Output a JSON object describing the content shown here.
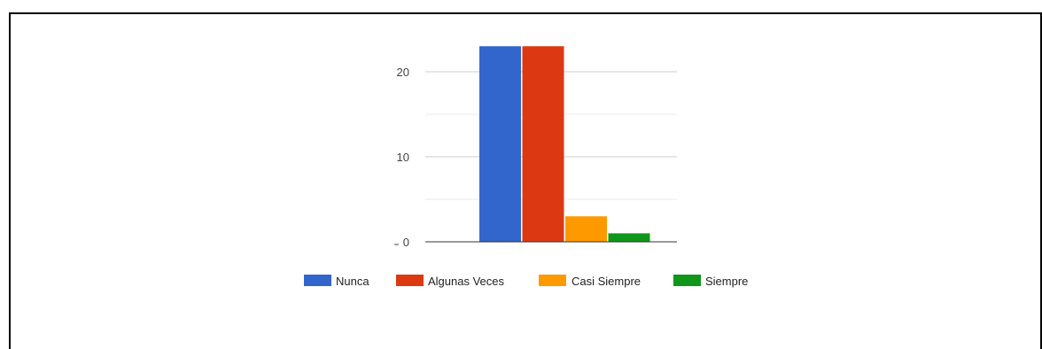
{
  "chart_data": {
    "type": "bar",
    "title": "",
    "xlabel": "",
    "ylabel": "",
    "ylim": [
      0,
      23
    ],
    "yticks": [
      0,
      10,
      20
    ],
    "grid": true,
    "legend_position": "bottom",
    "series": [
      {
        "name": "Nunca",
        "value": 23,
        "color": "#3366cc"
      },
      {
        "name": "Algunas Veces",
        "value": 23,
        "color": "#dc3912"
      },
      {
        "name": "Casi Siempre",
        "value": 3,
        "color": "#ff9900"
      },
      {
        "name": "Siempre",
        "value": 1,
        "color": "#109618"
      }
    ]
  }
}
